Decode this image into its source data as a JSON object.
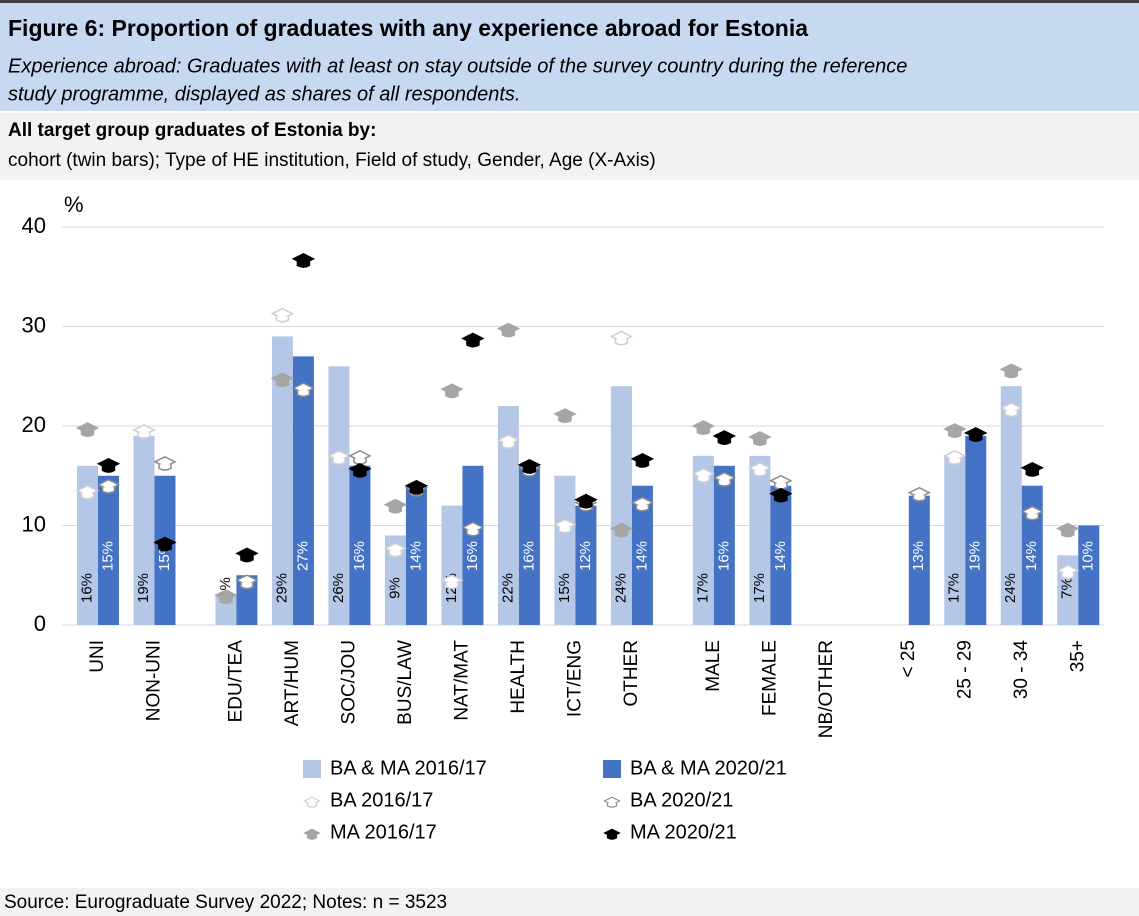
{
  "header": {
    "title": "Figure 6: Proportion of graduates with any experience abroad for Estonia",
    "subtitle": [
      "Experience abroad: Graduates with at least on stay outside of the survey country during the reference",
      "study programme, displayed as shares of all respondents."
    ],
    "group_title": "All target group graduates of Estonia by:",
    "group_description": "cohort (twin bars); Type of HE institution, Field of study, Gender, Age (X-Axis)"
  },
  "chart_data": {
    "type": "bar",
    "ylabel": "%",
    "categories": [
      "UNI",
      "NON-UNI",
      null,
      "EDU/TEA",
      "ART/HUM",
      "SOC/JOU",
      "BUS/LAW",
      "NAT/MAT",
      "HEALTH",
      "ICT/ENG",
      "OTHER",
      null,
      "MALE",
      "FEMALE",
      "NB/OTHER",
      null,
      "< 25",
      "25 - 29",
      "30 - 34",
      "35+"
    ],
    "ylim": [
      0,
      40
    ],
    "yticks": [
      0,
      10,
      20,
      30,
      40
    ],
    "grid": true,
    "series": [
      {
        "name": "BA & MA 2016/17",
        "type": "bar",
        "color": "#b4c7e7",
        "values": [
          16,
          19,
          null,
          3,
          29,
          26,
          9,
          12,
          22,
          15,
          24,
          null,
          17,
          17,
          null,
          null,
          null,
          17,
          24,
          7
        ],
        "value_labels": [
          "16%",
          "19%",
          null,
          "3%",
          "29%",
          "26%",
          "9%",
          "12%",
          "22%",
          "15%",
          "24%",
          null,
          "17%",
          "17%",
          null,
          null,
          null,
          "17%",
          "24%",
          "7%"
        ]
      },
      {
        "name": "BA & MA 2020/21",
        "type": "bar",
        "color": "#4472c4",
        "values": [
          15,
          15,
          null,
          5,
          27,
          16,
          14,
          16,
          16,
          12,
          14,
          null,
          16,
          14,
          null,
          null,
          13,
          19,
          14,
          10
        ],
        "value_labels": [
          "15%",
          "15%",
          null,
          "5%",
          "27%",
          "16%",
          "14%",
          "16%",
          "16%",
          "12%",
          "14%",
          null,
          "16%",
          "14%",
          null,
          null,
          "13%",
          "19%",
          "14%",
          "10%"
        ]
      },
      {
        "name": "BA 2016/17",
        "type": "scatter",
        "color": "#d0d0d0",
        "fill_color": "#ffffff",
        "values": [
          13.5,
          19.6,
          null,
          null,
          31.3,
          17,
          7.7,
          4.5,
          18.6,
          10.1,
          29,
          null,
          15.2,
          15.8,
          null,
          null,
          null,
          17,
          21.8,
          5.5
        ]
      },
      {
        "name": "BA 2020/21",
        "type": "scatter",
        "color": "#8c8c8c",
        "fill_color": "#ffffff",
        "values": [
          14.1,
          16.4,
          null,
          4.5,
          23.8,
          17,
          13.8,
          9.8,
          15.8,
          12.3,
          12.3,
          null,
          14.8,
          14.5,
          null,
          null,
          13.3,
          19.3,
          11.4,
          null
        ]
      },
      {
        "name": "MA 2016/17",
        "type": "scatter",
        "color": "#a6a6a6",
        "fill_color": "#a6a6a6",
        "values": [
          19.8,
          null,
          null,
          3,
          24.8,
          null,
          12.1,
          23.7,
          29.8,
          21.2,
          9.7,
          null,
          20,
          18.9,
          null,
          null,
          null,
          19.7,
          25.7,
          9.7
        ]
      },
      {
        "name": "MA 2020/21",
        "type": "scatter",
        "color": "#000000",
        "fill_color": "#000000",
        "values": [
          16.2,
          8.3,
          null,
          7.2,
          36.8,
          15.7,
          14,
          28.8,
          16.1,
          12.6,
          16.7,
          null,
          19,
          13.2,
          null,
          null,
          null,
          19.3,
          15.8,
          null
        ]
      }
    ]
  },
  "footer": {
    "source": "Source: Eurograduate Survey 2022; Notes: n = 3523"
  }
}
